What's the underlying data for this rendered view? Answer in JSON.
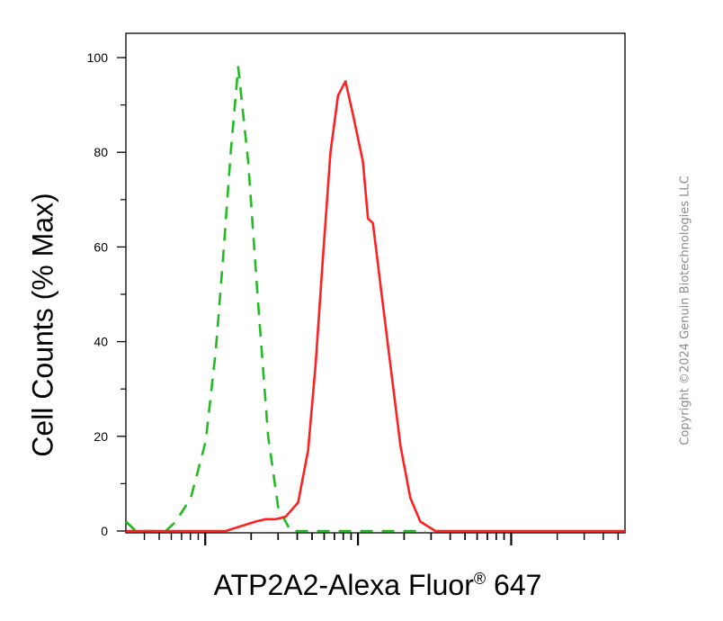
{
  "chart_data": {
    "type": "line",
    "ylabel": "Cell Counts (% Max)",
    "xlabel": {
      "main": "ATP2A2-Alexa Fluor",
      "mark": "®",
      "suffix": " 647"
    },
    "x_scale": "log (unlabeled decades)",
    "ylim": [
      0,
      100
    ],
    "y_ticks": [
      "0",
      "20",
      "40",
      "60",
      "80",
      "100"
    ],
    "grid": false,
    "series": [
      {
        "style": "dashed",
        "color": "#22bb22",
        "points": [
          [
            0.0,
            2
          ],
          [
            0.02,
            0
          ],
          [
            0.05,
            0
          ],
          [
            0.08,
            0
          ],
          [
            0.1,
            2
          ],
          [
            0.13,
            7
          ],
          [
            0.16,
            19
          ],
          [
            0.18,
            38
          ],
          [
            0.195,
            58
          ],
          [
            0.21,
            80
          ],
          [
            0.225,
            98
          ],
          [
            0.245,
            78
          ],
          [
            0.265,
            48
          ],
          [
            0.285,
            20
          ],
          [
            0.305,
            5
          ],
          [
            0.33,
            0
          ],
          [
            0.4,
            0
          ],
          [
            0.5,
            0
          ],
          [
            0.6,
            0
          ]
        ]
      },
      {
        "style": "solid",
        "color": "#ff2020",
        "points": [
          [
            0.0,
            0
          ],
          [
            0.2,
            0
          ],
          [
            0.23,
            1
          ],
          [
            0.26,
            2
          ],
          [
            0.28,
            2.5
          ],
          [
            0.3,
            2.5
          ],
          [
            0.32,
            3
          ],
          [
            0.345,
            6
          ],
          [
            0.365,
            17
          ],
          [
            0.38,
            35
          ],
          [
            0.395,
            58
          ],
          [
            0.41,
            80
          ],
          [
            0.425,
            92
          ],
          [
            0.44,
            95
          ],
          [
            0.455,
            88
          ],
          [
            0.475,
            78
          ],
          [
            0.485,
            66
          ],
          [
            0.495,
            65
          ],
          [
            0.51,
            52
          ],
          [
            0.53,
            35
          ],
          [
            0.55,
            18
          ],
          [
            0.57,
            7
          ],
          [
            0.59,
            2
          ],
          [
            0.62,
            0
          ],
          [
            0.7,
            0
          ],
          [
            0.8,
            0
          ],
          [
            0.9,
            0
          ],
          [
            1.0,
            0
          ]
        ]
      }
    ]
  },
  "copyright": "Copyright ©2024 Genuin Biotechnologies LLC"
}
